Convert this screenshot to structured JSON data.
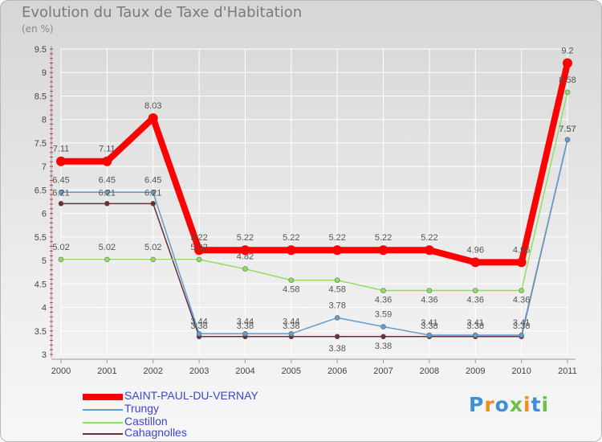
{
  "title": "Evolution du Taux de Taxe d'Habitation",
  "subtitle": "(en %)",
  "chart_data": {
    "type": "line",
    "title": "Evolution du Taux de Taxe d'Habitation",
    "subtitle": "(en %)",
    "xlabel": "",
    "ylabel": "",
    "categories": [
      "2000",
      "2001",
      "2002",
      "2003",
      "2004",
      "2005",
      "2006",
      "2007",
      "2008",
      "2009",
      "2010",
      "2011"
    ],
    "yticks": [
      "3",
      "3.5",
      "4",
      "4.5",
      "5",
      "5.5",
      "6",
      "6.5",
      "7",
      "7.5",
      "8",
      "8.5",
      "9",
      "9.5"
    ],
    "ylim": [
      3,
      9.5
    ],
    "grid": true,
    "legend_position": "bottom-left",
    "series": [
      {
        "name": "SAINT-PAUL-DU-VERNAY",
        "color": "#ff0000",
        "values": [
          7.11,
          7.11,
          8.03,
          5.22,
          5.22,
          5.22,
          5.22,
          5.22,
          5.22,
          4.96,
          4.96,
          9.2
        ],
        "labels": [
          "7.11",
          "7.11",
          "8.03",
          "5.22",
          "5.22",
          "5.22",
          "5.22",
          "5.22",
          "5.22",
          "4.96",
          "4.96",
          "9.2"
        ]
      },
      {
        "name": "Trungy",
        "color": "#5f9ed0",
        "values": [
          6.45,
          6.45,
          6.45,
          3.44,
          3.44,
          3.44,
          3.78,
          3.59,
          3.41,
          3.41,
          3.41,
          7.57
        ],
        "labels": [
          "6.45",
          "6.45",
          "6.45",
          "3.44",
          "3.44",
          "3.44",
          "3.78",
          "3.59",
          "3.41",
          "3.41",
          "3.41",
          "7.57"
        ]
      },
      {
        "name": "Castillon",
        "color": "#90e060",
        "values": [
          5.02,
          5.02,
          5.02,
          5.02,
          4.82,
          4.58,
          4.58,
          4.36,
          4.36,
          4.36,
          4.36,
          8.58
        ],
        "labels": [
          "5.02",
          "5.02",
          "5.02",
          "5.02",
          "4.82",
          "4.58",
          "4.58",
          "4.36",
          "4.36",
          "4.36",
          "4.36",
          "8.58"
        ]
      },
      {
        "name": "Cahagnolles",
        "color": "#6b2d3a",
        "values": [
          6.21,
          6.21,
          6.21,
          3.38,
          3.38,
          3.38,
          3.38,
          3.38,
          3.38,
          3.38,
          3.38,
          7.57
        ],
        "labels": [
          "6.21",
          "6.21",
          "6.21",
          "3.38",
          "3.38",
          "3.38",
          "3.38",
          "3.38",
          "3.38",
          "3.38",
          "3.38",
          "7.57"
        ]
      }
    ]
  },
  "legend": [
    {
      "label": "SAINT-PAUL-DU-VERNAY",
      "color": "#ff0000"
    },
    {
      "label": "Trungy",
      "color": "#5f9ed0"
    },
    {
      "label": "Castillon",
      "color": "#90e060"
    },
    {
      "label": "Cahagnolles",
      "color": "#6b2d3a"
    }
  ],
  "logo": {
    "text": "Proxiti",
    "letter_colors": [
      "#3d8fd6",
      "#f28c1e",
      "#3d8fd6",
      "#6cc04a",
      "#f28c1e",
      "#3d8fd6",
      "#6cc04a"
    ]
  }
}
